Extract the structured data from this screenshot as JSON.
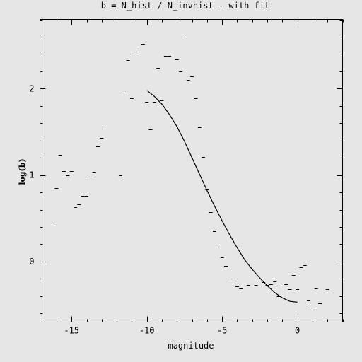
{
  "chart_data": {
    "type": "scatter",
    "title": "b = N_hist / N_invhist - with fit",
    "xlabel": "magnitude",
    "ylabel": "log(b)",
    "xlim": [
      -17.1,
      3.0
    ],
    "ylim": [
      -0.7,
      2.8
    ],
    "xticks": [
      -15,
      -10,
      -5,
      0
    ],
    "xtick_labels": [
      "-15",
      "-10",
      "-5",
      "0"
    ],
    "yticks": [
      0,
      1,
      2
    ],
    "ytick_labels": [
      "0",
      "1",
      "2"
    ],
    "grid": false,
    "series": [
      {
        "marker": "dash",
        "x": [
          -16.25,
          -16.0,
          -15.75,
          -15.5,
          -15.25,
          -15.0,
          -14.75,
          -14.5,
          -14.25,
          -14.0,
          -13.75,
          -13.5,
          -13.25,
          -13.0,
          -12.75,
          -11.75,
          -11.5,
          -11.25,
          -11.0,
          -10.75,
          -10.5,
          -10.25,
          -10.0,
          -9.75,
          -9.5,
          -9.25,
          -9.0,
          -8.75,
          -8.5,
          -8.25,
          -8.0,
          -7.75,
          -7.5,
          -7.25,
          -7.0,
          -6.75,
          -6.5,
          -6.25,
          -6.0,
          -5.75,
          -5.5,
          -5.25,
          -5.0,
          -4.75,
          -4.5,
          -4.25,
          -4.0,
          -3.75,
          -3.5,
          -3.25,
          -3.0,
          -2.75,
          -2.5,
          -2.25,
          -2.0,
          -1.75,
          -1.5,
          -1.25,
          -1.0,
          -0.75,
          -0.5,
          -0.25,
          0.0,
          0.25,
          0.5,
          0.75,
          1.0,
          1.25,
          1.5,
          2.0
        ],
        "y": [
          0.42,
          0.85,
          1.23,
          1.05,
          1.0,
          1.05,
          0.63,
          0.66,
          0.76,
          0.76,
          0.98,
          1.04,
          1.33,
          1.43,
          1.54,
          1.0,
          1.98,
          2.33,
          1.89,
          2.43,
          2.46,
          2.52,
          1.85,
          1.53,
          1.85,
          2.24,
          1.86,
          2.38,
          2.38,
          1.54,
          2.34,
          2.2,
          2.6,
          2.1,
          2.14,
          1.89,
          1.55,
          1.21,
          0.83,
          0.57,
          0.35,
          0.17,
          0.05,
          -0.05,
          -0.11,
          -0.2,
          -0.29,
          -0.31,
          -0.28,
          -0.27,
          -0.28,
          -0.27,
          -0.22,
          -0.24,
          -0.27,
          -0.26,
          -0.23,
          -0.4,
          -0.28,
          -0.26,
          -0.32,
          -0.16,
          -0.32,
          -0.07,
          -0.04,
          -0.45,
          -0.56,
          -0.31,
          -0.48,
          -0.32
        ]
      },
      {
        "marker": "line",
        "x": [
          -10.0,
          -9.5,
          -9.0,
          -8.5,
          -8.0,
          -7.5,
          -7.0,
          -6.5,
          -6.0,
          -5.5,
          -5.0,
          -4.5,
          -4.0,
          -3.5,
          -3.0,
          -2.5,
          -2.0,
          -1.5,
          -1.0,
          -0.5,
          0.0
        ],
        "y": [
          1.98,
          1.91,
          1.82,
          1.7,
          1.56,
          1.39,
          1.2,
          1.01,
          0.82,
          0.64,
          0.47,
          0.31,
          0.16,
          0.02,
          -0.09,
          -0.19,
          -0.28,
          -0.36,
          -0.42,
          -0.46,
          -0.47
        ]
      }
    ]
  }
}
